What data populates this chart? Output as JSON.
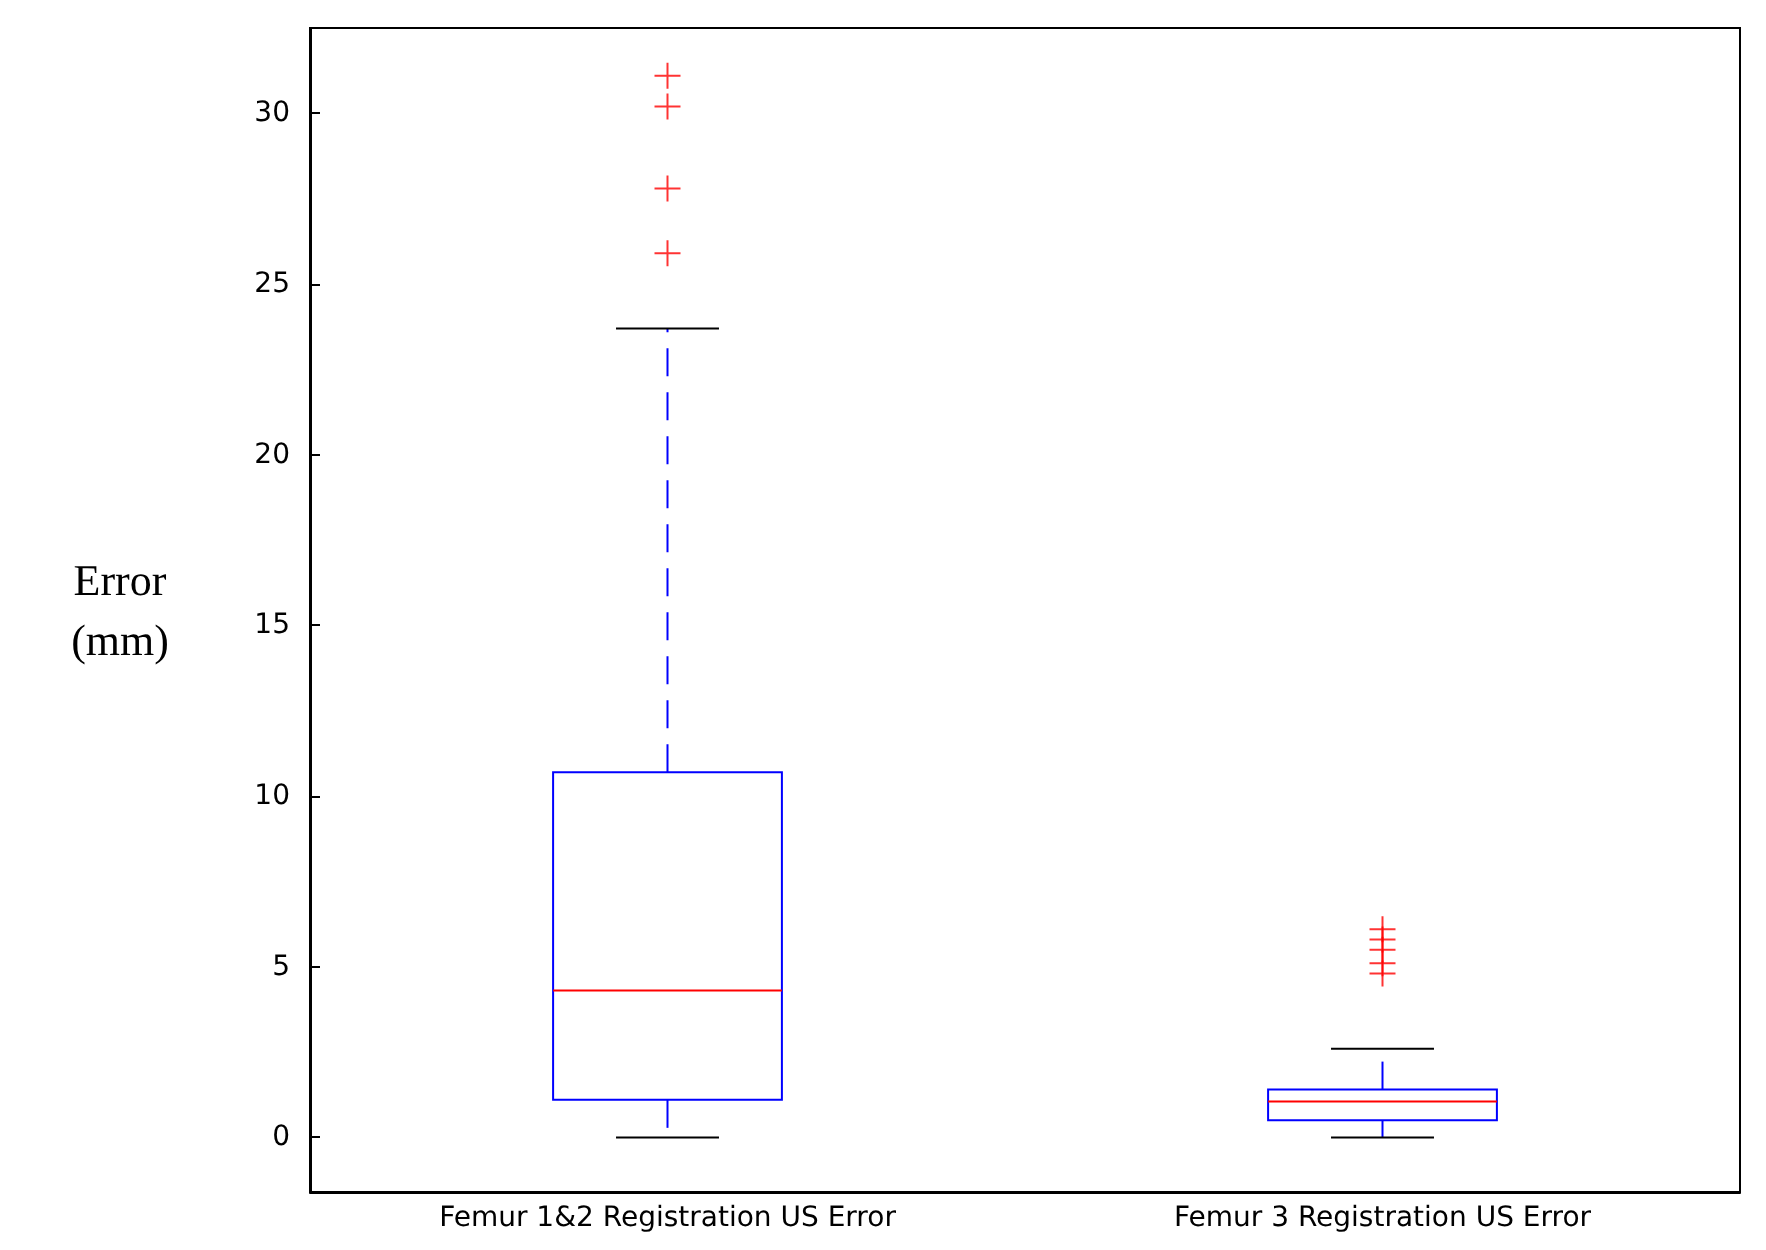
{
  "chart_data": {
    "type": "box",
    "ylabel": "Error\n(mm)",
    "categories": [
      "Femur 1&2 Registration US Error",
      "Femur 3 Registration US Error"
    ],
    "boxes": [
      {
        "low": 0,
        "q1": 1.1,
        "median": 4.3,
        "q3": 10.7,
        "high": 23.7,
        "outliers": [
          31.1,
          30.2,
          27.8,
          25.9
        ]
      },
      {
        "low": 0,
        "q1": 0.5,
        "median": 1.05,
        "q3": 1.4,
        "high": 2.6,
        "outliers": [
          6.1,
          5.8,
          5.5,
          5.1,
          4.8
        ]
      }
    ],
    "color": "#0000ff",
    "ylim": [
      -1.6,
      32.5
    ],
    "yticks": [
      0,
      5,
      10,
      15,
      20,
      25,
      30
    ],
    "grid": false
  }
}
